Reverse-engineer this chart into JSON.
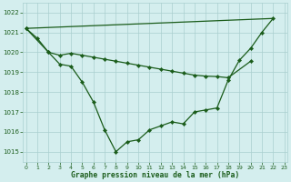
{
  "line1_x": [
    0,
    1,
    2,
    3,
    4,
    5,
    6,
    7,
    8,
    9,
    10,
    11,
    12,
    13,
    14,
    15,
    16,
    17,
    18,
    19,
    20,
    21,
    22
  ],
  "line1_y": [
    1021.2,
    1020.7,
    1020.0,
    1019.4,
    1019.3,
    1018.5,
    1017.5,
    1016.1,
    1015.0,
    1015.5,
    1015.6,
    1016.1,
    1016.3,
    1016.5,
    1016.4,
    1017.0,
    1017.1,
    1017.2,
    1018.6,
    1019.6,
    1020.2,
    1021.0,
    1021.7
  ],
  "line2_x": [
    0,
    2,
    3,
    4,
    5,
    6,
    7,
    8,
    9,
    10,
    11,
    12,
    13,
    14,
    15,
    16,
    17,
    18,
    20
  ],
  "line2_y": [
    1021.2,
    1020.0,
    1019.85,
    1019.95,
    1019.85,
    1019.75,
    1019.65,
    1019.55,
    1019.45,
    1019.35,
    1019.25,
    1019.15,
    1019.05,
    1018.95,
    1018.85,
    1018.8,
    1018.78,
    1018.72,
    1019.55
  ],
  "line3_x": [
    0,
    22
  ],
  "line3_y": [
    1021.2,
    1021.7
  ],
  "ylim": [
    1014.5,
    1022.5
  ],
  "xlim": [
    -0.3,
    23.3
  ],
  "yticks": [
    1015,
    1016,
    1017,
    1018,
    1019,
    1020,
    1021,
    1022
  ],
  "xticks": [
    0,
    1,
    2,
    3,
    4,
    5,
    6,
    7,
    8,
    9,
    10,
    11,
    12,
    13,
    14,
    15,
    16,
    17,
    18,
    19,
    20,
    21,
    22,
    23
  ],
  "line_color": "#1a5c1a",
  "bg_color": "#d4eeee",
  "grid_color": "#aacfcf",
  "xlabel": "Graphe pression niveau de la mer (hPa)",
  "marker": "D",
  "marker_size": 2.2,
  "linewidth": 0.9
}
